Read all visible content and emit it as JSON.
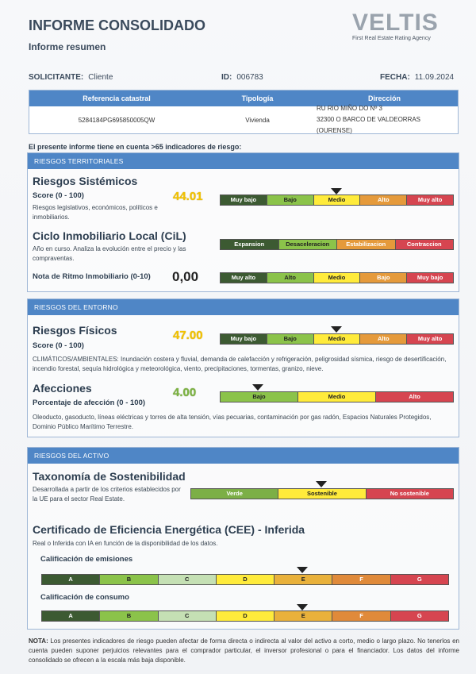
{
  "header": {
    "title": "INFORME CONSOLIDADO",
    "subtitle": "Informe resumen",
    "logo_text": "VELTIS",
    "logo_tagline": "First Real Estate Rating Agency"
  },
  "meta": {
    "solicitante_label": "SOLICITANTE:",
    "solicitante_value": "Cliente",
    "id_label": "ID:",
    "id_value": "006783",
    "fecha_label": "FECHA:",
    "fecha_value": "11.09.2024"
  },
  "ref_table": {
    "headers": [
      "Referencia catastral",
      "Tipología",
      "Dirección"
    ],
    "row": {
      "referencia": "5284184PG695850005QW",
      "tipologia": "Vivienda",
      "direccion_1": "RU RIO MIÑO DO Nº 3",
      "direccion_2": "32300 O BARCO DE VALDEORRAS (OURENSE)"
    }
  },
  "intro": "El presente informe tiene en cuenta >65 indicadores de riesgo:",
  "territoriales": {
    "header": "RIESGOS TERRITORIALES",
    "sistemicos": {
      "title": "Riesgos Sistémicos",
      "score_label": "Score (0 - 100)",
      "desc": "Riesgos legislativos, económicos, políticos e inmobiliarios.",
      "score": "44.01",
      "scale": [
        "Muy bajo",
        "Bajo",
        "Medio",
        "Alto",
        "Muy alto"
      ],
      "marker_index": 2
    },
    "cil": {
      "title": "Ciclo Inmobiliario Local (CiL)",
      "desc": "Año en curso. Analiza la evolución entre el precio y las compraventas.",
      "scale": [
        "Expansion",
        "Desaceleracion",
        "Estabilizacion",
        "Contraccion"
      ]
    },
    "ritmo": {
      "label": "Nota de Ritmo Inmobiliario (0-10)",
      "score": "0,00",
      "scale": [
        "Muy alto",
        "Alto",
        "Medio",
        "Bajo",
        "Muy bajo"
      ]
    }
  },
  "entorno": {
    "header": "RIESGOS DEL ENTORNO",
    "fisicos": {
      "title": "Riesgos Físicos",
      "score_label": "Score (0 - 100)",
      "score": "47.00",
      "scale": [
        "Muy bajo",
        "Bajo",
        "Medio",
        "Alto",
        "Muy alto"
      ],
      "marker_index": 2,
      "desc": "CLIMÁTICOS/AMBIENTALES: Inundación costera y fluvial, demanda de calefacción y refrigeración, peligrosidad sísmica, riesgo de desertificación, incendio forestal, sequía hidrológica y meteorológica, viento, precipitaciones, tormentas, granizo, nieve."
    },
    "afecciones": {
      "title": "Afecciones",
      "score_label": "Porcentaje de afección (0 - 100)",
      "score": "4.00",
      "scale": [
        "Bajo",
        "Medio",
        "Alto"
      ],
      "marker_index": 0,
      "desc": "Oleoducto, gasoducto, líneas eléctricas y torres de alta tensión, vías pecuarias, contaminación por gas radón, Espacios Naturales Protegidos, Dominio Público Marítimo Terrestre."
    }
  },
  "activo": {
    "header": "RIESGOS DEL ACTIVO",
    "taxonomia": {
      "title": "Taxonomía de Sostenibilidad",
      "desc": "Desarrollada a partir de los criterios establecidos por la UE para el sector Real Estate.",
      "scale": [
        "Verde",
        "Sostenible",
        "No sostenible"
      ],
      "marker_index": 1
    },
    "cee": {
      "title": "Certificado de Eficiencia Energética (CEE) - Inferida",
      "desc": "Real o Inferida con IA en función de la disponibilidad de los datos.",
      "emisiones_label": "Calificación de emisiones",
      "consumo_label": "Calificación de consumo",
      "letters": [
        "A",
        "B",
        "C",
        "D",
        "E",
        "F",
        "G"
      ],
      "emisiones_index": 4,
      "consumo_index": 4
    }
  },
  "note": {
    "label": "NOTA:",
    "text": "Los presentes indicadores de riesgo pueden afectar de forma directa o indirecta al valor del activo a corto, medio o largo plazo. No tenerlos en cuenta pueden suponer perjuicios relevantes para el comprador particular, el inversor profesional o para el financiador. Los datos del informe consolidado se ofrecen a la escala más baja disponible."
  },
  "colors": {
    "accent": "#4f86c6",
    "dark_green": "#3c5a32",
    "green": "#8bc34a",
    "yellow": "#ffeb3b",
    "orange": "#e59a3b",
    "red": "#d64550"
  }
}
